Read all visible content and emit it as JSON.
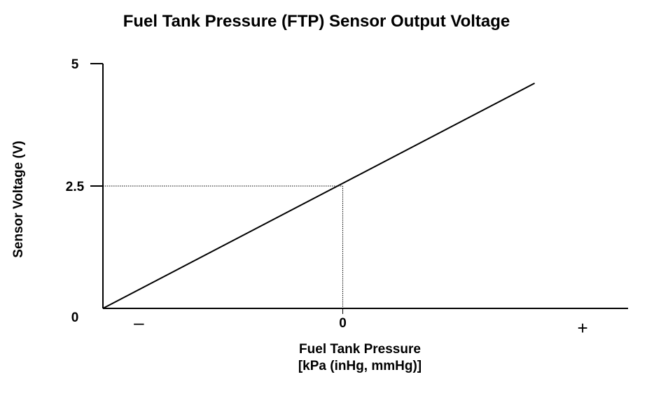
{
  "chart_data": {
    "type": "line",
    "title": "Fuel Tank Pressure (FTP) Sensor Output Voltage",
    "xlabel": "Fuel Tank Pressure",
    "xlabel_units": "[kPa (inHg, mmHg)]",
    "ylabel": "Sensor Voltage (V)",
    "x_ticks": [
      "–",
      "0",
      "+"
    ],
    "y_ticks": [
      "0",
      "2.5",
      "5"
    ],
    "xlim": [
      -1,
      1.14
    ],
    "ylim": [
      0,
      5
    ],
    "series": [
      {
        "x": [
          -1,
          0.8
        ],
        "y": [
          0,
          4.6
        ]
      }
    ],
    "reference_point": {
      "x": 0,
      "y": 2.5
    },
    "grid": false,
    "colors": {
      "line": "#000000",
      "reference": "#000000"
    }
  }
}
